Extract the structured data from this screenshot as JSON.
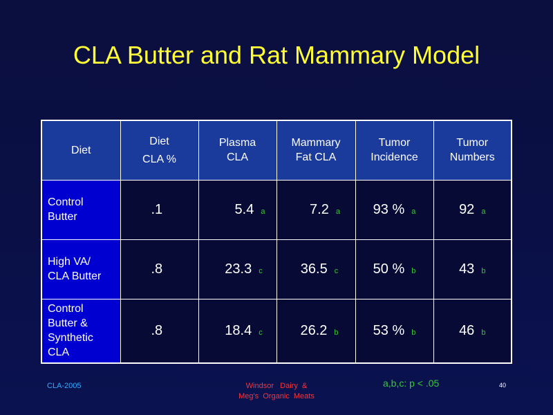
{
  "title": "CLA Butter and Rat Mammary Model",
  "table": {
    "headers": [
      [
        "Diet"
      ],
      [
        "Diet",
        "CLA %"
      ],
      [
        "Plasma",
        "CLA"
      ],
      [
        "Mammary",
        "Fat CLA"
      ],
      [
        "Tumor",
        "Incidence"
      ],
      [
        "Tumor",
        "Numbers"
      ]
    ],
    "rows": [
      {
        "label": [
          "Control",
          "Butter"
        ],
        "diet_cla": ".1",
        "plasma_cla": {
          "value": "5.4",
          "sig": "a"
        },
        "mammary_fat_cla": {
          "value": "7.2",
          "sig": "a"
        },
        "tumor_incidence": {
          "value": "93 %",
          "sig": "a"
        },
        "tumor_numbers": {
          "value": "92",
          "sig": "a"
        }
      },
      {
        "label": [
          "High VA/",
          "CLA Butter"
        ],
        "diet_cla": ".8",
        "plasma_cla": {
          "value": "23.3",
          "sig": "c"
        },
        "mammary_fat_cla": {
          "value": "36.5",
          "sig": "c"
        },
        "tumor_incidence": {
          "value": "50 %",
          "sig": "b"
        },
        "tumor_numbers": {
          "value": "43",
          "sig": "b"
        }
      },
      {
        "label": [
          "Control",
          "Butter &",
          "Synthetic",
          "CLA"
        ],
        "diet_cla": ".8",
        "plasma_cla": {
          "value": "18.4",
          "sig": "c"
        },
        "mammary_fat_cla": {
          "value": "26.2",
          "sig": "b"
        },
        "tumor_incidence": {
          "value": "53 %",
          "sig": "b"
        },
        "tumor_numbers": {
          "value": "46",
          "sig": "b"
        }
      }
    ]
  },
  "footer": {
    "left": "CLA-2005",
    "center_line1": "Windsor   Dairy  &",
    "center_line2": "Meg's  Organic  Meats",
    "significance_note": "a,b,c: p < .05",
    "slide_number": "40"
  },
  "colors": {
    "background": "#0b0f3f",
    "title": "#ffff33",
    "header_cell": "#1a3a9c",
    "row_label_cell": "#0000d0",
    "significance": "#33cc33",
    "footer_left": "#33aaff",
    "footer_center": "#ff3333"
  }
}
